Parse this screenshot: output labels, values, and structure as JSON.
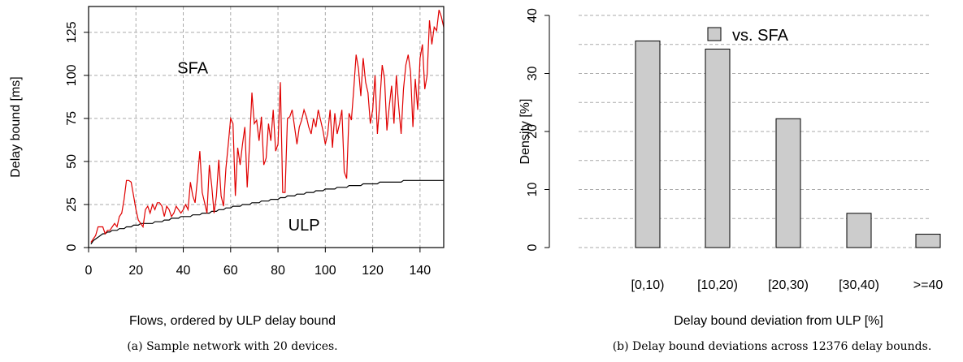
{
  "chart_data": [
    {
      "type": "line",
      "ylabel": "Delay bound [ms]",
      "xlabel": "Flows, ordered by ULP delay bound",
      "caption": "(a) Sample network with 20 devices.",
      "xlim": [
        0,
        150
      ],
      "ylim": [
        0,
        140
      ],
      "xticks": [
        0,
        20,
        40,
        60,
        80,
        100,
        120,
        140
      ],
      "yticks": [
        0,
        25,
        50,
        75,
        100,
        125
      ],
      "grid": true,
      "series": [
        {
          "name": "SFA",
          "color": "#e00000",
          "x": [
            1,
            2,
            3,
            4,
            5,
            6,
            7,
            8,
            9,
            10,
            11,
            12,
            13,
            14,
            15,
            16,
            17,
            18,
            19,
            20,
            21,
            22,
            23,
            24,
            25,
            26,
            27,
            28,
            29,
            30,
            31,
            32,
            33,
            34,
            35,
            36,
            37,
            38,
            39,
            40,
            41,
            42,
            43,
            44,
            45,
            46,
            47,
            48,
            49,
            50,
            51,
            52,
            53,
            54,
            55,
            56,
            57,
            58,
            59,
            60,
            61,
            62,
            63,
            64,
            65,
            66,
            67,
            68,
            69,
            70,
            71,
            72,
            73,
            74,
            75,
            76,
            77,
            78,
            79,
            80,
            81,
            82,
            83,
            84,
            85,
            86,
            87,
            88,
            89,
            90,
            91,
            92,
            93,
            94,
            95,
            96,
            97,
            98,
            99,
            100,
            101,
            102,
            103,
            104,
            105,
            106,
            107,
            108,
            109,
            110,
            111,
            112,
            113,
            114,
            115,
            116,
            117,
            118,
            119,
            120,
            121,
            122,
            123,
            124,
            125,
            126,
            127,
            128,
            129,
            130,
            131,
            132,
            133,
            134,
            135,
            136,
            137,
            138,
            139,
            140,
            141,
            142,
            143,
            144,
            145,
            146,
            147,
            148,
            149,
            150
          ],
          "y": [
            3,
            5,
            7,
            12,
            12,
            12,
            8,
            10,
            10,
            12,
            14,
            12,
            18,
            20,
            28,
            39,
            39,
            38,
            30,
            22,
            16,
            14,
            12,
            22,
            24,
            20,
            25,
            22,
            26,
            26,
            24,
            18,
            24,
            22,
            18,
            20,
            24,
            22,
            20,
            22,
            25,
            22,
            38,
            30,
            26,
            40,
            56,
            32,
            26,
            20,
            48,
            36,
            20,
            30,
            51,
            30,
            24,
            46,
            60,
            75,
            72,
            30,
            58,
            48,
            60,
            70,
            35,
            60,
            90,
            72,
            74,
            62,
            76,
            48,
            52,
            72,
            62,
            80,
            56,
            60,
            96,
            32,
            32,
            75,
            76,
            80,
            70,
            60,
            70,
            74,
            80,
            76,
            70,
            66,
            75,
            70,
            80,
            74,
            68,
            60,
            66,
            80,
            58,
            78,
            66,
            72,
            80,
            44,
            40,
            78,
            74,
            92,
            112,
            104,
            88,
            110,
            96,
            90,
            72,
            80,
            100,
            66,
            84,
            106,
            98,
            68,
            82,
            94,
            72,
            100,
            82,
            66,
            92,
            106,
            112,
            102,
            70,
            98,
            80,
            110,
            118,
            92,
            100,
            132,
            118,
            128,
            126,
            138,
            134,
            128
          ]
        },
        {
          "name": "ULP",
          "color": "#000000",
          "x": [
            1,
            2,
            3,
            4,
            5,
            6,
            7,
            8,
            9,
            10,
            11,
            12,
            13,
            14,
            15,
            16,
            17,
            18,
            19,
            20,
            21,
            22,
            23,
            24,
            25,
            26,
            27,
            28,
            29,
            30,
            31,
            32,
            33,
            34,
            35,
            36,
            37,
            38,
            39,
            40,
            41,
            42,
            43,
            44,
            45,
            46,
            47,
            48,
            49,
            50,
            51,
            52,
            53,
            54,
            55,
            56,
            57,
            58,
            59,
            60,
            61,
            62,
            63,
            64,
            65,
            66,
            67,
            68,
            69,
            70,
            71,
            72,
            73,
            74,
            75,
            76,
            77,
            78,
            79,
            80,
            81,
            82,
            83,
            84,
            85,
            86,
            87,
            88,
            89,
            90,
            91,
            92,
            93,
            94,
            95,
            96,
            97,
            98,
            99,
            100,
            101,
            102,
            103,
            104,
            105,
            106,
            107,
            108,
            109,
            110,
            111,
            112,
            113,
            114,
            115,
            116,
            117,
            118,
            119,
            120,
            121,
            122,
            123,
            124,
            125,
            126,
            127,
            128,
            129,
            130,
            131,
            132,
            133,
            134,
            135,
            136,
            137,
            138,
            139,
            140,
            141,
            142,
            143,
            144,
            145,
            146,
            147,
            148,
            149,
            150
          ],
          "y": [
            2,
            4,
            5,
            6,
            7,
            8,
            8,
            9,
            9,
            10,
            10,
            10,
            11,
            11,
            11,
            12,
            12,
            12,
            13,
            13,
            13,
            14,
            14,
            14,
            14,
            14,
            14,
            15,
            15,
            15,
            15,
            16,
            16,
            16,
            17,
            17,
            17,
            17,
            18,
            18,
            18,
            18,
            18,
            19,
            19,
            19,
            19,
            20,
            20,
            20,
            20,
            21,
            21,
            21,
            22,
            22,
            22,
            23,
            23,
            23,
            24,
            24,
            24,
            24,
            25,
            25,
            25,
            25,
            26,
            26,
            26,
            26,
            27,
            27,
            27,
            27,
            28,
            28,
            28,
            28,
            29,
            29,
            29,
            30,
            30,
            30,
            30,
            31,
            31,
            31,
            31,
            32,
            32,
            32,
            32,
            33,
            33,
            33,
            33,
            34,
            34,
            34,
            34,
            34,
            35,
            35,
            35,
            35,
            35,
            36,
            36,
            36,
            36,
            36,
            36,
            37,
            37,
            37,
            37,
            37,
            37,
            37,
            38,
            38,
            38,
            38,
            38,
            38,
            38,
            38,
            38,
            38,
            39,
            39,
            39,
            39,
            39,
            39,
            39,
            39,
            39,
            39,
            39,
            39,
            39,
            39,
            39,
            39,
            39,
            39
          ]
        }
      ],
      "annotations": [
        "SFA",
        "ULP"
      ]
    },
    {
      "type": "bar",
      "ylabel": "Density [%]",
      "xlabel": "Delay bound deviation from ULP [%]",
      "caption": "(b) Delay bound deviations across 12376 delay bounds.",
      "categories": [
        "[0,10)",
        "[10,20)",
        "[20,30)",
        "[30,40)",
        ">=40"
      ],
      "ylim": [
        0,
        40
      ],
      "yticks": [
        0,
        10,
        20,
        30,
        40
      ],
      "grid": true,
      "series": [
        {
          "name": "vs. SFA",
          "color": "#cccccc",
          "values": [
            35.6,
            34.2,
            22.2,
            5.9,
            2.3
          ]
        }
      ],
      "legend": "top-center"
    }
  ]
}
